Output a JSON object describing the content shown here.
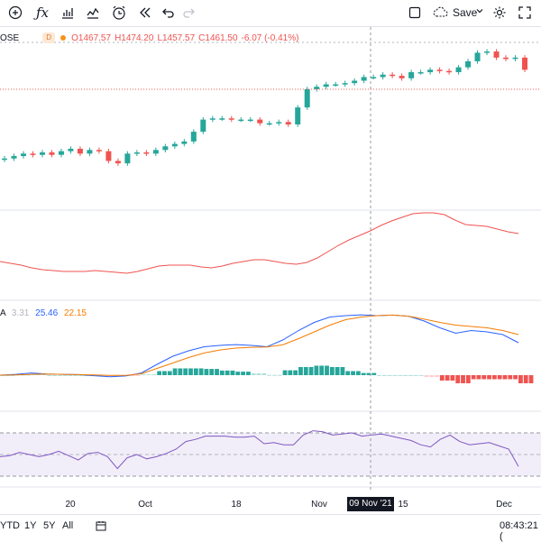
{
  "toolbar": {
    "save_label": "Save",
    "icons": [
      "plus-circle-icon",
      "fx-icon",
      "bar-chart-icon",
      "line-chart-icon",
      "alert-clock-icon",
      "replay-icon",
      "undo-icon",
      "redo-icon",
      "square-icon",
      "cloud-icon",
      "chevron-down-icon",
      "gear-icon",
      "fullscreen-icon"
    ]
  },
  "legend": {
    "symbol": "OSE",
    "interval_badge": "D",
    "open": "O1467.57",
    "high": "H1474.20",
    "low": "L1457.57",
    "close": "C1461.50",
    "change": "-6.07 (-0.41%)"
  },
  "macd_legend": {
    "name": "A",
    "hist": "3.31",
    "macd": "25.46",
    "signal": "22.15"
  },
  "time_axis": {
    "labels": [
      "20",
      "Oct",
      "18",
      "Nov",
      "15",
      "Dec"
    ],
    "crosshair_label": "09 Nov '21"
  },
  "bottom_bar": {
    "ranges": [
      "YTD",
      "1Y",
      "5Y",
      "All"
    ],
    "clock": "08:43:21 ("
  },
  "colors": {
    "up": "#26a69a",
    "down": "#ef5350",
    "macd": "#2962ff",
    "signal": "#f57c00",
    "rsi": "#7e57c2",
    "line_indicator": "#ef5350"
  },
  "chart_data": {
    "type": "candlestick",
    "candles_close_trend": [
      1388,
      1390,
      1392,
      1391,
      1393,
      1391,
      1394,
      1396,
      1392,
      1395,
      1394,
      1386,
      1384,
      1392,
      1393,
      1392,
      1395,
      1398,
      1400,
      1402,
      1410,
      1420,
      1421,
      1421,
      1420,
      1420,
      1420,
      1417,
      1417,
      1418,
      1416,
      1430,
      1445,
      1447,
      1449,
      1449,
      1450,
      1452,
      1455,
      1455,
      1457,
      1456,
      1454,
      1459,
      1459,
      1461,
      1460,
      1459,
      1463,
      1468,
      1475,
      1476,
      1471,
      1470,
      1471,
      1461
    ],
    "line_indicator_trend": [
      270,
      268,
      266,
      263,
      261,
      260,
      259,
      259,
      259,
      260,
      259,
      258,
      257,
      259,
      262,
      265,
      266,
      266,
      266,
      264,
      263,
      265,
      268,
      270,
      272,
      272,
      270,
      268,
      267,
      269,
      274,
      281,
      288,
      294,
      299,
      304,
      310,
      315,
      319,
      323,
      324,
      324,
      322,
      316,
      311,
      310,
      309,
      306,
      303,
      301
    ],
    "macd": {
      "macd_series": [
        0,
        0.3,
        0.8,
        0.4,
        0.3,
        0.2,
        -0.2,
        -0.6,
        -0.3,
        0.8,
        4,
        7,
        9,
        10.5,
        11,
        11.3,
        11,
        10.5,
        13,
        16.5,
        19.5,
        21.5,
        22,
        22.3,
        22,
        22.2,
        21.8,
        20,
        17.5,
        15.5,
        16.5,
        16,
        15,
        12
      ],
      "signal_series": [
        0,
        0.1,
        0.3,
        0.4,
        0.3,
        0.2,
        0.1,
        -0.1,
        -0.1,
        0.5,
        2.5,
        4.5,
        6.5,
        8.2,
        9.3,
        10,
        10.3,
        10.4,
        11.2,
        13.5,
        16,
        18.5,
        20.5,
        21.5,
        22,
        22.2,
        21.8,
        20.7,
        19.5,
        18.5,
        18,
        17.5,
        16.5,
        15
      ],
      "hist_note": "histogram bars green above zero, red below"
    },
    "rsi": {
      "band": [
        30,
        70
      ],
      "values": [
        48,
        49,
        52,
        50,
        48,
        50,
        53,
        49,
        45,
        51,
        52,
        48,
        37,
        47,
        50,
        46,
        48,
        51,
        55,
        62,
        64,
        67,
        67,
        67,
        66,
        66,
        67,
        60,
        61,
        59,
        59,
        68,
        72,
        71,
        68,
        69,
        70,
        67,
        68,
        69,
        67,
        65,
        63,
        59,
        57,
        64,
        68,
        62,
        59,
        60,
        61,
        58,
        55,
        39
      ]
    }
  }
}
